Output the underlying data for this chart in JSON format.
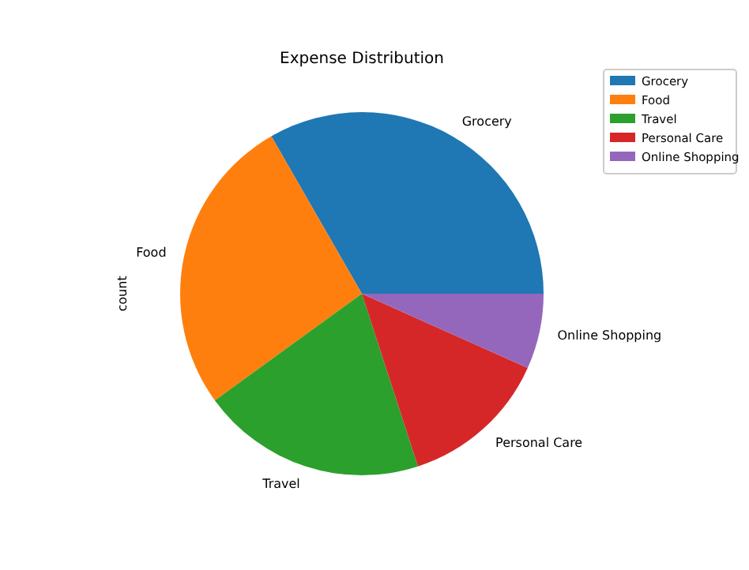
{
  "chart_data": {
    "type": "pie",
    "title": "Expense Distribution",
    "ylabel": "count",
    "categories": [
      "Grocery",
      "Food",
      "Travel",
      "Personal Care",
      "Online Shopping"
    ],
    "values": [
      33.3,
      26.7,
      20,
      13.3,
      6.7
    ],
    "colors": [
      "#1f77b4",
      "#ff7f0e",
      "#2ca02c",
      "#d62728",
      "#9467bd"
    ],
    "legend": "top right"
  }
}
